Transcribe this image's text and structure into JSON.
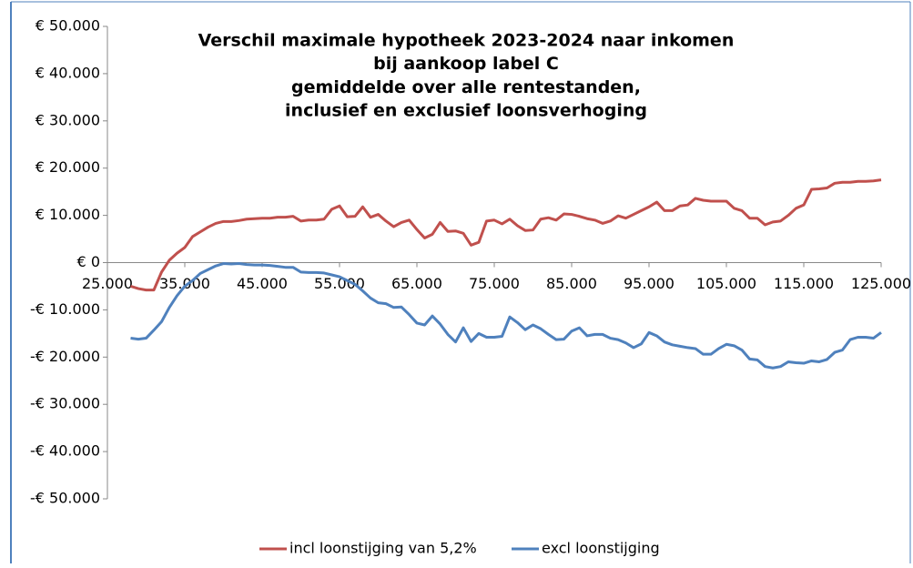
{
  "chart_data": {
    "type": "line",
    "title": [
      "Verschil maximale hypotheek 2023-2024 naar inkomen",
      "bij aankoop label C",
      "gemiddelde over alle rentestanden,",
      "inclusief en exclusief loonsverhoging"
    ],
    "x": [
      28000,
      29000,
      30000,
      31000,
      32000,
      33000,
      34000,
      35000,
      36000,
      37000,
      38000,
      39000,
      40000,
      41000,
      42000,
      43000,
      44000,
      45000,
      46000,
      47000,
      48000,
      49000,
      50000,
      51000,
      52000,
      53000,
      54000,
      55000,
      56000,
      57000,
      58000,
      59000,
      60000,
      61000,
      62000,
      63000,
      64000,
      65000,
      66000,
      67000,
      68000,
      69000,
      70000,
      71000,
      72000,
      73000,
      74000,
      75000,
      76000,
      77000,
      78000,
      79000,
      80000,
      81000,
      82000,
      83000,
      84000,
      85000,
      86000,
      87000,
      88000,
      89000,
      90000,
      91000,
      92000,
      93000,
      94000,
      95000,
      96000,
      97000,
      98000,
      99000,
      100000,
      101000,
      102000,
      103000,
      104000,
      105000,
      106000,
      107000,
      108000,
      109000,
      110000,
      111000,
      112000,
      113000,
      114000,
      115000,
      116000,
      117000,
      118000,
      119000,
      120000,
      121000,
      122000,
      123000,
      124000,
      125000
    ],
    "series": [
      {
        "name": "incl loonstijging van 5,2%",
        "color": "#c0504d",
        "values": [
          -5000,
          -5500,
          -5800,
          -5800,
          -2000,
          500,
          2000,
          3200,
          5500,
          6500,
          7500,
          8300,
          8700,
          8700,
          8900,
          9200,
          9300,
          9400,
          9400,
          9600,
          9600,
          9800,
          8800,
          9000,
          9000,
          9200,
          11300,
          12000,
          9700,
          9800,
          11800,
          9600,
          10200,
          8800,
          7600,
          8500,
          9000,
          7000,
          5200,
          6000,
          8500,
          6600,
          6700,
          6200,
          3700,
          4300,
          8800,
          9000,
          8200,
          9200,
          7800,
          6800,
          6900,
          9200,
          9500,
          9000,
          10300,
          10200,
          9800,
          9300,
          9000,
          8300,
          8800,
          9900,
          9400,
          10200,
          11000,
          11800,
          12800,
          11000,
          11000,
          12000,
          12200,
          13600,
          13200,
          13000,
          13000,
          13000,
          11500,
          11000,
          9400,
          9400,
          8000,
          8600,
          8800,
          10000,
          11500,
          12200,
          15500,
          15600,
          15800,
          16800,
          17000,
          17000,
          17200,
          17200,
          17300,
          17500
        ]
      },
      {
        "name": "excl loonstijging",
        "color": "#4f81bd",
        "values": [
          -16000,
          -16200,
          -16000,
          -14300,
          -12500,
          -9500,
          -7000,
          -5000,
          -3800,
          -2300,
          -1500,
          -700,
          -200,
          -300,
          -200,
          -400,
          -500,
          -500,
          -600,
          -800,
          -1000,
          -1000,
          -2000,
          -2100,
          -2100,
          -2200,
          -2600,
          -3000,
          -3800,
          -4600,
          -6000,
          -7500,
          -8500,
          -8700,
          -9500,
          -9400,
          -11000,
          -12800,
          -13200,
          -11300,
          -13000,
          -15200,
          -16800,
          -13800,
          -16700,
          -15000,
          -15800,
          -15800,
          -15600,
          -11500,
          -12700,
          -14200,
          -13200,
          -14000,
          -15200,
          -16300,
          -16200,
          -14500,
          -13800,
          -15500,
          -15200,
          -15200,
          -16000,
          -16300,
          -17000,
          -18000,
          -17200,
          -14800,
          -15500,
          -16800,
          -17400,
          -17700,
          -18000,
          -18200,
          -19400,
          -19400,
          -18200,
          -17300,
          -17600,
          -18500,
          -20400,
          -20600,
          -22000,
          -22300,
          -22000,
          -21000,
          -21200,
          -21300,
          -20800,
          -21000,
          -20500,
          -19000,
          -18500,
          -16300,
          -15800,
          -15800,
          -16000,
          -14800
        ]
      }
    ],
    "xlim": [
      25000,
      125000
    ],
    "xticks": [
      {
        "value": 25000,
        "label": "25.000"
      },
      {
        "value": 35000,
        "label": "35.000"
      },
      {
        "value": 45000,
        "label": "45.000"
      },
      {
        "value": 55000,
        "label": "55.000"
      },
      {
        "value": 65000,
        "label": "65.000"
      },
      {
        "value": 75000,
        "label": "75.000"
      },
      {
        "value": 85000,
        "label": "85.000"
      },
      {
        "value": 95000,
        "label": "95.000"
      },
      {
        "value": 105000,
        "label": "105.000"
      },
      {
        "value": 115000,
        "label": "115.000"
      },
      {
        "value": 125000,
        "label": "125.000"
      }
    ],
    "ylim": [
      -50000,
      50000
    ],
    "yticks": [
      {
        "value": 50000,
        "label": "€ 50.000"
      },
      {
        "value": 40000,
        "label": "€ 40.000"
      },
      {
        "value": 30000,
        "label": "€ 30.000"
      },
      {
        "value": 20000,
        "label": "€ 20.000"
      },
      {
        "value": 10000,
        "label": "€ 10.000"
      },
      {
        "value": 0,
        "label": "€ 0"
      },
      {
        "value": -10000,
        "label": "-€ 10.000"
      },
      {
        "value": -20000,
        "label": "-€ 20.000"
      },
      {
        "value": -30000,
        "label": "-€ 30.000"
      },
      {
        "value": -40000,
        "label": "-€ 40.000"
      },
      {
        "value": -50000,
        "label": "-€ 50.000"
      }
    ],
    "grid": false,
    "legend": "bottom"
  }
}
